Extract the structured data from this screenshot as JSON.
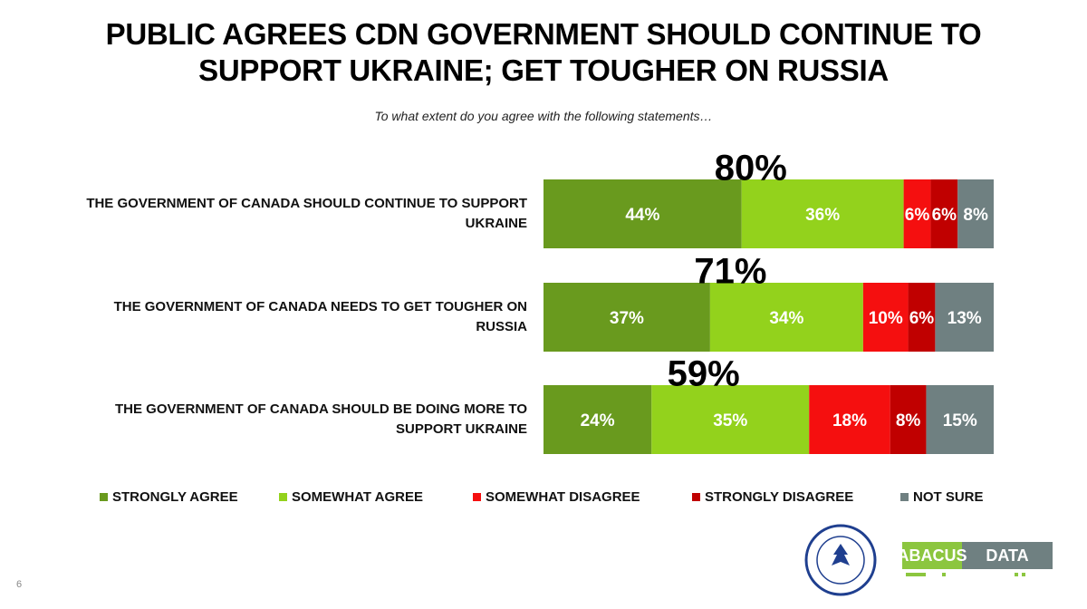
{
  "chart_data": {
    "type": "stacked-bar-horizontal",
    "title": "PUBLIC AGREES CDN GOVERNMENT SHOULD CONTINUE TO SUPPORT UKRAINE; GET TOUGHER ON RUSSIA",
    "subtitle": "To what extent do you agree with the following statements…",
    "categories": [
      "THE GOVERNMENT OF CANADA SHOULD CONTINUE TO SUPPORT UKRAINE",
      "THE GOVERNMENT OF CANADA NEEDS TO GET TOUGHER ON RUSSIA",
      "THE GOVERNMENT OF CANADA SHOULD BE DOING MORE TO SUPPORT UKRAINE"
    ],
    "series": [
      {
        "name": "STRONGLY AGREE",
        "color": "#699a1e",
        "values": [
          44,
          37,
          24
        ],
        "value_labels": [
          "44%",
          "37%",
          "24%"
        ]
      },
      {
        "name": "SOMEWHAT AGREE",
        "color": "#93d21c",
        "values": [
          36,
          34,
          35
        ],
        "value_labels": [
          "36%",
          "34%",
          "35%"
        ]
      },
      {
        "name": "SOMEWHAT DISAGREE",
        "color": "#f50f0f",
        "values": [
          6,
          10,
          18
        ],
        "value_labels": [
          "6%",
          "10%",
          "18%"
        ]
      },
      {
        "name": "STRONGLY DISAGREE",
        "color": "#c00000",
        "values": [
          6,
          6,
          8
        ],
        "value_labels": [
          "6%",
          "6%",
          "8%"
        ]
      },
      {
        "name": "NOT SURE",
        "color": "#6f8081",
        "values": [
          8,
          13,
          15
        ],
        "value_labels": [
          "8%",
          "13%",
          "15%"
        ]
      }
    ],
    "totals": {
      "values": [
        80,
        71,
        59
      ],
      "value_labels": [
        "80%",
        "71%",
        "59%"
      ]
    },
    "xlim": [
      0,
      100
    ],
    "legend": "bottom"
  },
  "logo": {
    "left": "ABACUS",
    "right": "DATA"
  },
  "page_number": "6"
}
